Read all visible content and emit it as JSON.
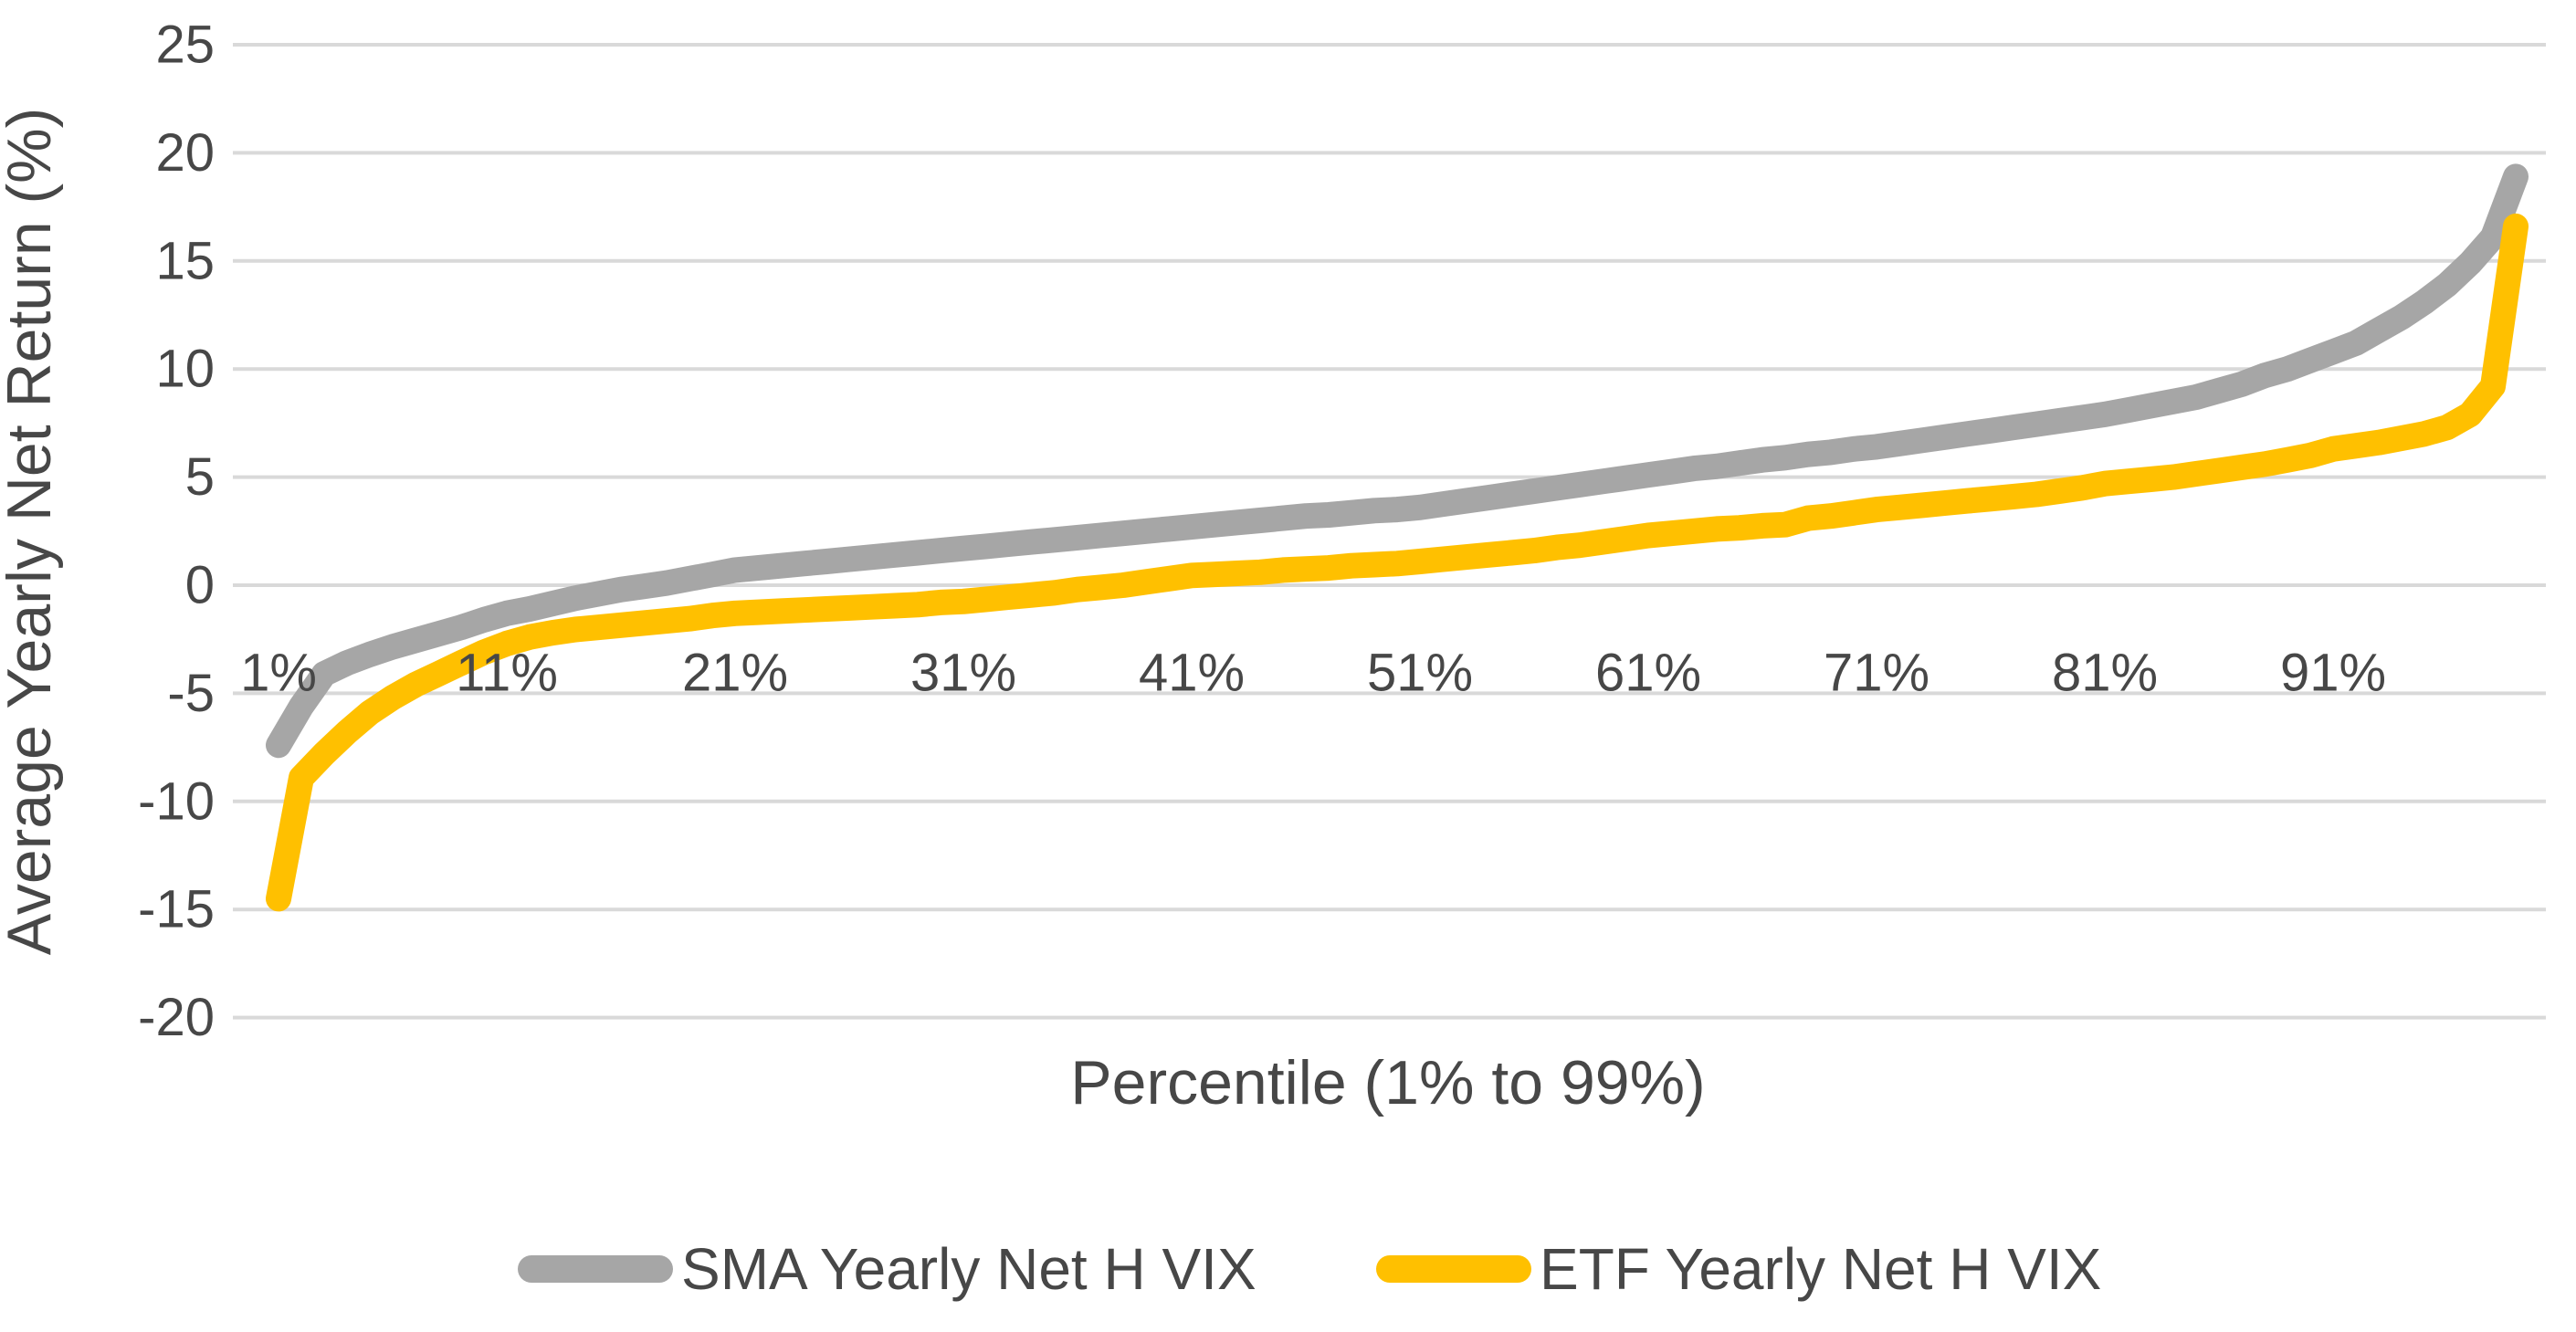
{
  "chart_data": {
    "type": "line",
    "title": "",
    "xlabel": "Percentile (1% to 99%)",
    "ylabel": "Average Yearly Net Return (%)",
    "x_start": 1,
    "x_end": 99,
    "x_tick_labels": [
      "1%",
      "11%",
      "21%",
      "31%",
      "41%",
      "51%",
      "61%",
      "71%",
      "81%",
      "91%"
    ],
    "x_tick_percentiles": [
      1,
      11,
      21,
      31,
      41,
      51,
      61,
      71,
      81,
      91
    ],
    "y_ticks": [
      25,
      20,
      15,
      10,
      5,
      0,
      -5,
      -10,
      -15,
      -20
    ],
    "ylim": [
      -20,
      25
    ],
    "grid": "horizontal",
    "legend_position": "bottom",
    "series": [
      {
        "name": "SMA Yearly Net H VIX",
        "color": "#a6a6a6",
        "values": [
          -7.4,
          -5.6,
          -4.1,
          -3.6,
          -3.2,
          -2.85,
          -2.55,
          -2.25,
          -1.95,
          -1.6,
          -1.3,
          -1.1,
          -0.85,
          -0.6,
          -0.4,
          -0.2,
          -0.05,
          0.1,
          0.3,
          0.5,
          0.7,
          0.8,
          0.9,
          1.0,
          1.1,
          1.2,
          1.3,
          1.4,
          1.5,
          1.6,
          1.7,
          1.8,
          1.9,
          2.0,
          2.1,
          2.2,
          2.3,
          2.4,
          2.5,
          2.6,
          2.7,
          2.8,
          2.9,
          3.0,
          3.1,
          3.2,
          3.25,
          3.35,
          3.45,
          3.5,
          3.6,
          3.75,
          3.9,
          4.05,
          4.2,
          4.35,
          4.5,
          4.65,
          4.8,
          4.95,
          5.1,
          5.25,
          5.4,
          5.5,
          5.65,
          5.8,
          5.9,
          6.05,
          6.15,
          6.3,
          6.4,
          6.55,
          6.7,
          6.85,
          7.0,
          7.15,
          7.3,
          7.45,
          7.6,
          7.75,
          7.9,
          8.1,
          8.3,
          8.5,
          8.7,
          9.0,
          9.3,
          9.7,
          10.0,
          10.4,
          10.8,
          11.2,
          11.8,
          12.4,
          13.1,
          13.9,
          14.9,
          16.1,
          18.9
        ]
      },
      {
        "name": "ETF Yearly Net H VIX",
        "color": "#ffc000",
        "values": [
          -14.5,
          -8.9,
          -7.8,
          -6.8,
          -5.9,
          -5.2,
          -4.6,
          -4.1,
          -3.6,
          -3.1,
          -2.7,
          -2.4,
          -2.2,
          -2.05,
          -1.95,
          -1.85,
          -1.75,
          -1.65,
          -1.55,
          -1.4,
          -1.3,
          -1.25,
          -1.2,
          -1.15,
          -1.1,
          -1.05,
          -1.0,
          -0.95,
          -0.9,
          -0.8,
          -0.75,
          -0.65,
          -0.55,
          -0.45,
          -0.35,
          -0.2,
          -0.1,
          0.0,
          0.15,
          0.3,
          0.45,
          0.5,
          0.55,
          0.6,
          0.7,
          0.75,
          0.8,
          0.9,
          0.95,
          1.0,
          1.1,
          1.2,
          1.3,
          1.4,
          1.5,
          1.6,
          1.75,
          1.85,
          2.0,
          2.15,
          2.3,
          2.4,
          2.5,
          2.6,
          2.65,
          2.75,
          2.8,
          3.1,
          3.2,
          3.35,
          3.5,
          3.6,
          3.7,
          3.8,
          3.9,
          4.0,
          4.1,
          4.2,
          4.35,
          4.5,
          4.7,
          4.8,
          4.9,
          5.0,
          5.15,
          5.3,
          5.45,
          5.6,
          5.8,
          6.0,
          6.3,
          6.45,
          6.6,
          6.8,
          7.0,
          7.3,
          7.9,
          9.2,
          16.6
        ]
      }
    ]
  },
  "colors": {
    "gridline": "#d9d9d9",
    "text": "#474747",
    "background": "#ffffff"
  }
}
